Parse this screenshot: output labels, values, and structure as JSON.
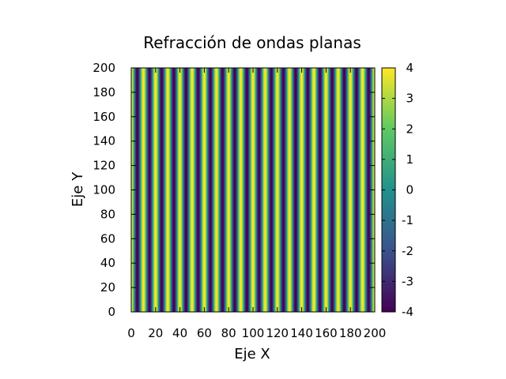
{
  "chart_data": {
    "type": "heatmap",
    "title": "Refracción de ondas planas",
    "xlabel": "Eje X",
    "ylabel": "Eje Y",
    "xlim": [
      0,
      200
    ],
    "ylim": [
      0,
      200
    ],
    "x_ticks": [
      0,
      20,
      40,
      60,
      80,
      100,
      120,
      140,
      160,
      180,
      200
    ],
    "y_ticks": [
      0,
      20,
      40,
      60,
      80,
      100,
      120,
      140,
      160,
      180,
      200
    ],
    "colorbar": {
      "range": [
        -4,
        4
      ],
      "ticks": [
        -4,
        -3,
        -2,
        -1,
        0,
        1,
        2,
        3,
        4
      ],
      "colormap": "viridis",
      "colors": [
        "#440154",
        "#3b528b",
        "#21918c",
        "#5ec962",
        "#fde725"
      ]
    },
    "field": {
      "pattern": "vertical stripes (constant along Y)",
      "amplitude": 4,
      "wavelength_x": 10,
      "phase_at_x0": 0,
      "x_extent": [
        0,
        200
      ]
    }
  }
}
